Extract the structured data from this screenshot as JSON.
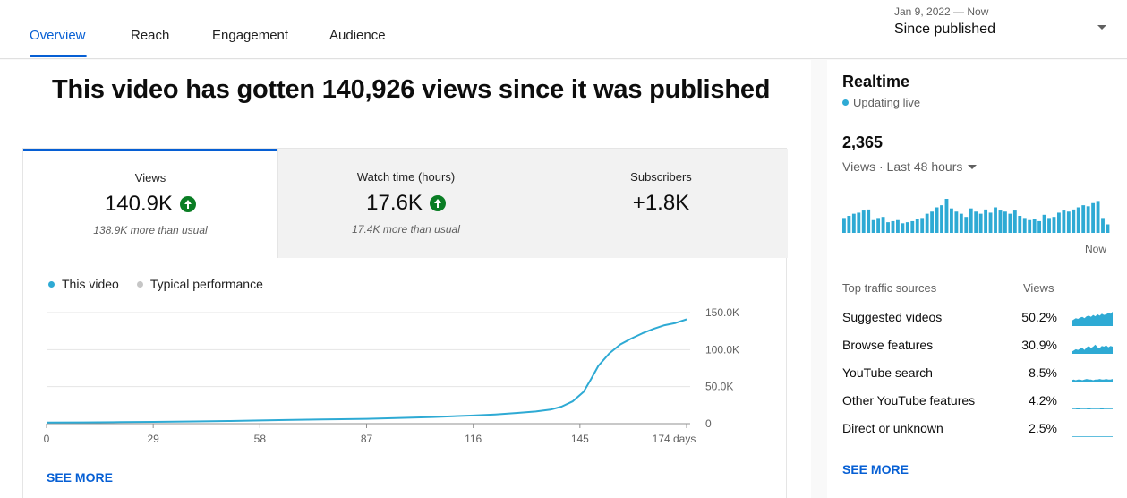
{
  "tabs": [
    {
      "label": "Overview",
      "active": true
    },
    {
      "label": "Reach",
      "active": false
    },
    {
      "label": "Engagement",
      "active": false
    },
    {
      "label": "Audience",
      "active": false
    }
  ],
  "date_range": {
    "range": "Jan 9, 2022 — Now",
    "label": "Since published"
  },
  "headline": "This video has gotten 140,926 views since it was published",
  "metrics": [
    {
      "label": "Views",
      "value": "140.9K",
      "trend": "up",
      "sub": "138.9K more than usual"
    },
    {
      "label": "Watch time (hours)",
      "value": "17.6K",
      "trend": "up",
      "sub": "17.4K more than usual"
    },
    {
      "label": "Subscribers",
      "value": "+1.8K",
      "trend": "none",
      "sub": ""
    }
  ],
  "legend": {
    "this_video": "This video",
    "typical": "Typical performance"
  },
  "colors": {
    "accent": "#065fd4",
    "series": "#2eaad4",
    "typical": "#c6c6c6",
    "trend_up": "#0a7d24"
  },
  "chart_data": {
    "type": "line",
    "x_unit": "days",
    "x_ticks": [
      "0",
      "29",
      "58",
      "87",
      "116",
      "145",
      "174 days"
    ],
    "y_ticks": [
      "150.0K",
      "100.0K",
      "50.0K",
      "0"
    ],
    "ylim": [
      0,
      150000
    ],
    "xlim": [
      0,
      174
    ],
    "series": [
      {
        "name": "This video",
        "x": [
          0,
          10,
          20,
          29,
          40,
          50,
          58,
          65,
          75,
          87,
          95,
          105,
          116,
          122,
          128,
          133,
          137,
          140,
          143,
          146,
          148,
          150,
          153,
          156,
          159,
          162,
          165,
          168,
          171,
          174
        ],
        "y": [
          1500,
          1700,
          2000,
          2400,
          3000,
          3600,
          4300,
          5000,
          5700,
          6500,
          7500,
          9000,
          11000,
          12500,
          14500,
          16500,
          19000,
          23000,
          30000,
          43000,
          60000,
          78000,
          95000,
          107000,
          115000,
          122000,
          128000,
          133000,
          136000,
          140900
        ]
      }
    ]
  },
  "see_more_label": "SEE MORE",
  "realtime": {
    "title": "Realtime",
    "status": "Updating live",
    "count": "2,365",
    "range_label": "Views · Last 48 hours",
    "now_label": "Now",
    "bar_values": [
      14,
      16,
      18,
      19,
      21,
      22,
      12,
      14,
      15,
      10,
      11,
      12,
      9,
      10,
      11,
      13,
      14,
      18,
      20,
      24,
      26,
      32,
      23,
      20,
      18,
      15,
      23,
      20,
      18,
      22,
      19,
      24,
      21,
      20,
      18,
      21,
      16,
      14,
      12,
      13,
      11,
      17,
      14,
      15,
      19,
      21,
      20,
      22,
      24,
      26,
      25,
      28,
      30,
      14,
      8
    ]
  },
  "traffic": {
    "header_label": "Top traffic sources",
    "header_value": "Views",
    "rows": [
      {
        "name": "Suggested videos",
        "value": "50.2%",
        "spark": [
          8,
          10,
          12,
          11,
          13,
          14,
          12,
          15,
          16,
          14,
          17,
          15,
          18,
          16,
          19,
          17,
          18,
          20,
          19,
          22
        ]
      },
      {
        "name": "Browse features",
        "value": "30.9%",
        "spark": [
          3,
          5,
          7,
          6,
          8,
          9,
          6,
          10,
          12,
          9,
          11,
          14,
          10,
          9,
          12,
          11,
          13,
          10,
          12,
          11
        ]
      },
      {
        "name": "YouTube search",
        "value": "8.5%",
        "spark": [
          2,
          3,
          2,
          3,
          3,
          2,
          3,
          4,
          3,
          3,
          2,
          3,
          3,
          4,
          3,
          3,
          4,
          3,
          3,
          4
        ]
      },
      {
        "name": "Other YouTube features",
        "value": "4.2%",
        "spark": [
          1,
          1,
          1,
          2,
          1,
          1,
          1,
          1,
          2,
          1,
          1,
          1,
          1,
          1,
          2,
          1,
          1,
          1,
          1,
          1
        ]
      },
      {
        "name": "Direct or unknown",
        "value": "2.5%",
        "spark": [
          1,
          1,
          1,
          1,
          1,
          1,
          1,
          1,
          1,
          1,
          1,
          1,
          1,
          1,
          1,
          1,
          1,
          1,
          1,
          1
        ]
      }
    ]
  }
}
